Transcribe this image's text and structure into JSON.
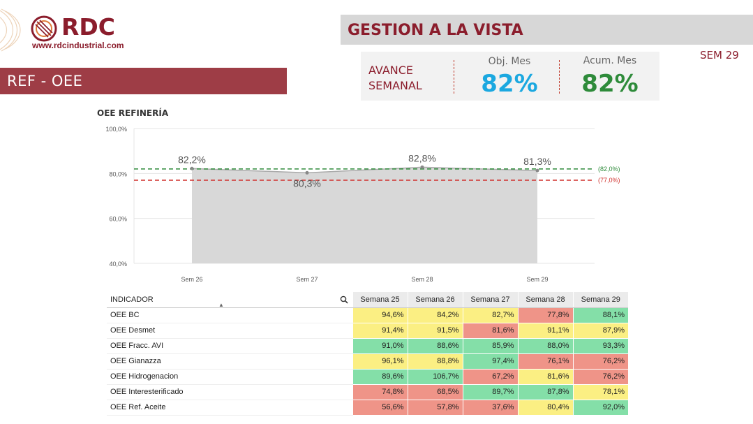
{
  "brand": {
    "name": "RDC",
    "url": "www.rdcindustrial.com",
    "color": "#8b1d2c"
  },
  "header": {
    "title": "GESTION A LA VISTA",
    "week": "SEM 29"
  },
  "banner": {
    "label": "REF - OEE"
  },
  "kpi": {
    "avance_line1": "AVANCE",
    "avance_line2": "SEMANAL",
    "obj_label": "Obj. Mes",
    "obj_value": "82%",
    "obj_color": "#1ba8e0",
    "acum_label": "Acum. Mes",
    "acum_value": "82%",
    "acum_color": "#2e8b3a"
  },
  "chart_data": {
    "type": "area",
    "title": "OEE REFINERÍA",
    "categories": [
      "Sem 26",
      "Sem 27",
      "Sem 28",
      "Sem 29"
    ],
    "values": [
      82.2,
      80.3,
      82.8,
      81.3
    ],
    "value_labels": [
      "82,2%",
      "80,3%",
      "82,8%",
      "81,3%"
    ],
    "ylim": [
      40,
      100
    ],
    "yticks": [
      40,
      60,
      80,
      100
    ],
    "ytick_labels": [
      "40,0%",
      "60,0%",
      "80,0%",
      "100,0%"
    ],
    "reference_lines": [
      {
        "value": 82,
        "label": "(82,0%)",
        "color": "#2e8b3a"
      },
      {
        "value": 77,
        "label": "(77,0%)",
        "color": "#d0312d"
      }
    ],
    "grid": true
  },
  "table": {
    "header_indicator": "INDICADOR",
    "weeks": [
      "Semana 25",
      "Semana 26",
      "Semana 27",
      "Semana 28",
      "Semana 29"
    ],
    "rows": [
      {
        "name": "OEE BC",
        "values": [
          "94,6%",
          "84,2%",
          "82,7%",
          "77,8%",
          "88,1%"
        ],
        "status": [
          "y",
          "y",
          "y",
          "r",
          "g"
        ]
      },
      {
        "name": "OEE Desmet",
        "values": [
          "91,4%",
          "91,5%",
          "81,6%",
          "91,1%",
          "87,9%"
        ],
        "status": [
          "y",
          "y",
          "r",
          "y",
          "y"
        ]
      },
      {
        "name": "OEE Fracc. AVI",
        "values": [
          "91,0%",
          "88,6%",
          "85,9%",
          "88,0%",
          "93,3%"
        ],
        "status": [
          "g",
          "g",
          "g",
          "g",
          "g"
        ]
      },
      {
        "name": "OEE Gianazza",
        "values": [
          "96,1%",
          "88,8%",
          "97,4%",
          "76,1%",
          "76,2%"
        ],
        "status": [
          "y",
          "y",
          "g",
          "r",
          "r"
        ]
      },
      {
        "name": "OEE Hidrogenacion",
        "values": [
          "89,6%",
          "106,7%",
          "67,2%",
          "81,6%",
          "76,2%"
        ],
        "status": [
          "g",
          "g",
          "r",
          "y",
          "r"
        ]
      },
      {
        "name": "OEE Interesterificado",
        "values": [
          "74,8%",
          "68,5%",
          "89,7%",
          "87,8%",
          "78,1%"
        ],
        "status": [
          "r",
          "r",
          "g",
          "g",
          "y"
        ]
      },
      {
        "name": "OEE Ref. Aceite",
        "values": [
          "56,6%",
          "57,8%",
          "37,6%",
          "80,4%",
          "92,0%"
        ],
        "status": [
          "r",
          "r",
          "r",
          "y",
          "g"
        ]
      }
    ],
    "status_colors": {
      "g": "#84dfa8",
      "y": "#fbef83",
      "r": "#ef9488"
    }
  }
}
